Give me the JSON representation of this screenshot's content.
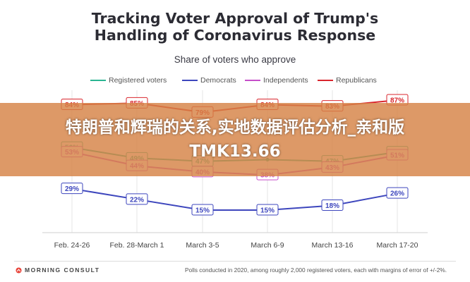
{
  "chart_data": {
    "type": "line",
    "title_lines": [
      "Tracking Voter Approval of Trump's",
      "Handling of Coronavirus Response"
    ],
    "subtitle": "Share of voters who approve",
    "categories": [
      "Feb. 24-26",
      "Feb. 28-March 1",
      "March 3-5",
      "March 6-9",
      "March 13-16",
      "March 17-20"
    ],
    "ylim": [
      0,
      100
    ],
    "legend_position": "top",
    "grid": true,
    "series": [
      {
        "name": "Registered voters",
        "color": "#2bb592",
        "values": [
          56,
          49,
          47,
          48,
          47,
          53
        ]
      },
      {
        "name": "Democrats",
        "color": "#3d46bd",
        "values": [
          29,
          22,
          15,
          15,
          18,
          26
        ]
      },
      {
        "name": "Independents",
        "color": "#c64fc9",
        "values": [
          53,
          44,
          40,
          38,
          43,
          51
        ]
      },
      {
        "name": "Republicans",
        "color": "#d9262d",
        "values": [
          84,
          85,
          79,
          84,
          83,
          87
        ]
      }
    ],
    "data_labels": [
      {
        "series": 3,
        "labels": [
          "84%",
          "85%",
          "79%",
          "84%",
          "83%",
          "87%"
        ]
      },
      {
        "series": 0,
        "labels": [
          "56%",
          "49%",
          "47%",
          "",
          "47%",
          "53%"
        ]
      },
      {
        "series": 2,
        "labels": [
          "53%",
          "44%",
          "40%",
          "38%",
          "43%",
          "51%"
        ]
      },
      {
        "series": 1,
        "labels": [
          "29%",
          "22%",
          "15%",
          "15%",
          "18%",
          "26%"
        ]
      }
    ]
  },
  "overlay": {
    "text": "特朗普和辉瑞的关系,实地数据评估分析_亲和版TMK13.66"
  },
  "footer": {
    "logo_text": "MORNING CONSULT",
    "note": "Polls conducted in 2020, among roughly 2,000 registered voters, each with margins of error of +/-2%.",
    "logo_color": "#e8443a"
  }
}
